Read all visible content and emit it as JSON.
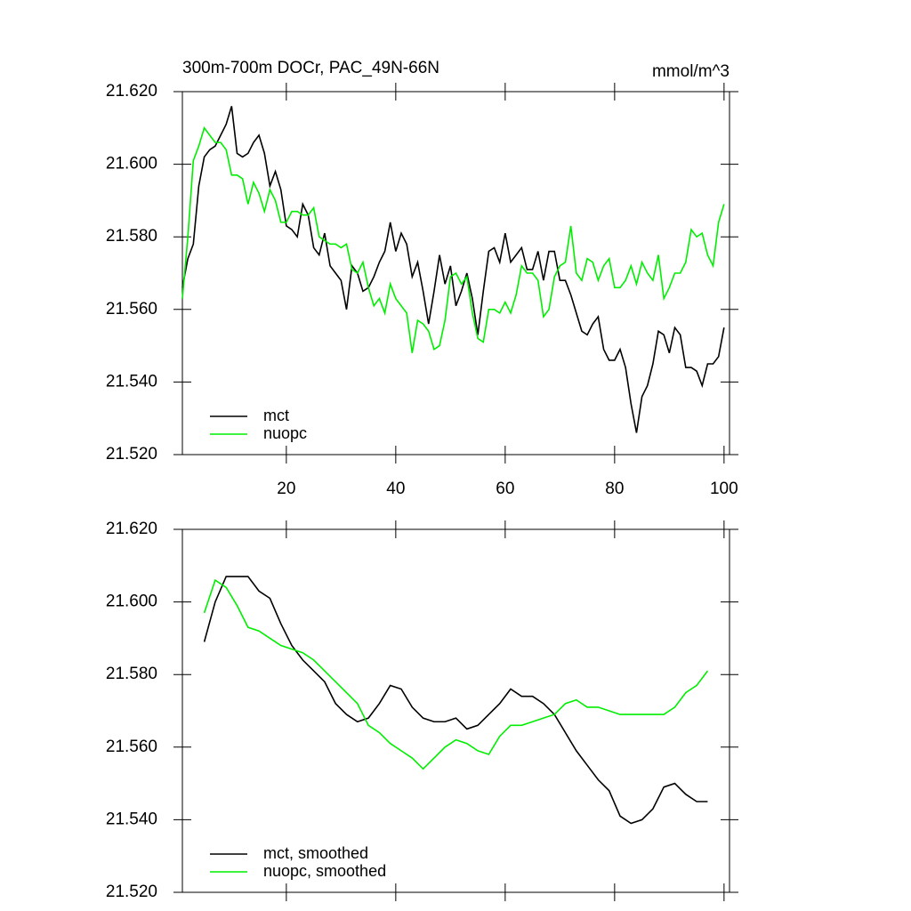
{
  "chart_data": [
    {
      "type": "line",
      "title": "300m-700m DOCr, PAC_49N-66N",
      "right_title": "mmol/m^3",
      "x": [
        1,
        2,
        3,
        4,
        5,
        6,
        7,
        8,
        9,
        10,
        11,
        12,
        13,
        14,
        15,
        16,
        17,
        18,
        19,
        20,
        21,
        22,
        23,
        24,
        25,
        26,
        27,
        28,
        29,
        30,
        31,
        32,
        33,
        34,
        35,
        36,
        37,
        38,
        39,
        40,
        41,
        42,
        43,
        44,
        45,
        46,
        47,
        48,
        49,
        50,
        51,
        52,
        53,
        54,
        55,
        56,
        57,
        58,
        59,
        60,
        61,
        62,
        63,
        64,
        65,
        66,
        67,
        68,
        69,
        70,
        71,
        72,
        73,
        74,
        75,
        76,
        77,
        78,
        79,
        80,
        81,
        82,
        83,
        84,
        85,
        86,
        87,
        88,
        89,
        90,
        91,
        92,
        93,
        94,
        95,
        96,
        97,
        98,
        99,
        100
      ],
      "series": [
        {
          "name": "mct",
          "color": "#000000",
          "values": [
            21.566,
            21.574,
            21.578,
            21.594,
            21.602,
            21.604,
            21.605,
            21.608,
            21.611,
            21.616,
            21.603,
            21.602,
            21.603,
            21.606,
            21.608,
            21.603,
            21.594,
            21.598,
            21.593,
            21.583,
            21.582,
            21.58,
            21.589,
            21.586,
            21.577,
            21.575,
            21.581,
            21.572,
            21.57,
            21.568,
            21.56,
            21.572,
            21.57,
            21.565,
            21.566,
            21.569,
            21.573,
            21.576,
            21.584,
            21.576,
            21.581,
            21.578,
            21.569,
            21.573,
            21.565,
            21.556,
            21.565,
            21.575,
            21.567,
            21.572,
            21.561,
            21.565,
            21.57,
            21.563,
            21.553,
            21.565,
            21.576,
            21.577,
            21.573,
            21.581,
            21.573,
            21.575,
            21.577,
            21.571,
            21.571,
            21.576,
            21.568,
            21.576,
            21.576,
            21.568,
            21.568,
            21.564,
            21.559,
            21.554,
            21.553,
            21.556,
            21.558,
            21.549,
            21.546,
            21.546,
            21.549,
            21.544,
            21.534,
            21.526,
            21.536,
            21.539,
            21.545,
            21.554,
            21.553,
            21.548,
            21.555,
            21.553,
            21.544,
            21.544,
            21.543,
            21.539,
            21.545,
            21.545,
            21.547,
            21.555
          ]
        },
        {
          "name": "nuopc",
          "color": "#00ee00",
          "values": [
            21.563,
            21.58,
            21.601,
            21.605,
            21.61,
            21.608,
            21.606,
            21.606,
            21.604,
            21.597,
            21.597,
            21.596,
            21.589,
            21.595,
            21.592,
            21.587,
            21.593,
            21.59,
            21.584,
            21.584,
            21.587,
            21.587,
            21.586,
            21.586,
            21.588,
            21.58,
            21.579,
            21.578,
            21.578,
            21.577,
            21.578,
            21.571,
            21.57,
            21.573,
            21.566,
            21.561,
            21.563,
            21.559,
            21.567,
            21.563,
            21.561,
            21.559,
            21.548,
            21.557,
            21.556,
            21.554,
            21.549,
            21.55,
            21.557,
            21.569,
            21.57,
            21.567,
            21.569,
            21.559,
            21.552,
            21.551,
            21.56,
            21.56,
            21.559,
            21.562,
            21.559,
            21.564,
            21.572,
            21.57,
            21.57,
            21.568,
            21.558,
            21.56,
            21.569,
            21.572,
            21.573,
            21.583,
            21.57,
            21.568,
            21.574,
            21.573,
            21.568,
            21.572,
            21.574,
            21.566,
            21.566,
            21.568,
            21.572,
            21.567,
            21.573,
            21.57,
            21.568,
            21.575,
            21.563,
            21.566,
            21.57,
            21.57,
            21.573,
            21.582,
            21.58,
            21.581,
            21.575,
            21.572,
            21.584,
            21.589
          ]
        }
      ],
      "xlim": [
        1,
        101
      ],
      "xticks": [
        20,
        40,
        60,
        80,
        100
      ],
      "xtick_labels": true,
      "ylim": [
        21.52,
        21.62
      ],
      "yticks": [
        {
          "value": 21.52,
          "label": "21.520"
        },
        {
          "value": 21.54,
          "label": "21.540"
        },
        {
          "value": 21.56,
          "label": "21.560"
        },
        {
          "value": 21.58,
          "label": "21.580"
        },
        {
          "value": 21.6,
          "label": "21.600"
        },
        {
          "value": 21.62,
          "label": "21.620"
        }
      ],
      "legend": "lower-left"
    },
    {
      "type": "line",
      "x": [
        5,
        7,
        9,
        11,
        13,
        15,
        17,
        19,
        21,
        23,
        25,
        27,
        29,
        31,
        33,
        35,
        37,
        39,
        41,
        43,
        45,
        47,
        49,
        51,
        53,
        55,
        57,
        59,
        61,
        63,
        65,
        67,
        69,
        71,
        73,
        75,
        77,
        79,
        81,
        83,
        85,
        87,
        89,
        91,
        93,
        95,
        97
      ],
      "series": [
        {
          "name": "mct, smoothed",
          "color": "#000000",
          "values": [
            21.589,
            21.6,
            21.607,
            21.607,
            21.607,
            21.603,
            21.601,
            21.594,
            21.588,
            21.584,
            21.581,
            21.578,
            21.572,
            21.569,
            21.567,
            21.568,
            21.572,
            21.577,
            21.576,
            21.571,
            21.568,
            21.567,
            21.567,
            21.568,
            21.565,
            21.566,
            21.569,
            21.572,
            21.576,
            21.574,
            21.574,
            21.572,
            21.569,
            21.564,
            21.559,
            21.555,
            21.551,
            21.548,
            21.541,
            21.539,
            21.54,
            21.543,
            21.549,
            21.55,
            21.547,
            21.545,
            21.545
          ]
        },
        {
          "name": "nuopc, smoothed",
          "color": "#00ee00",
          "values": [
            21.597,
            21.606,
            21.604,
            21.599,
            21.593,
            21.592,
            21.59,
            21.588,
            21.587,
            21.586,
            21.584,
            21.581,
            21.578,
            21.575,
            21.572,
            21.566,
            21.564,
            21.561,
            21.559,
            21.557,
            21.554,
            21.557,
            21.56,
            21.562,
            21.561,
            21.559,
            21.558,
            21.563,
            21.566,
            21.566,
            21.567,
            21.568,
            21.569,
            21.572,
            21.573,
            21.571,
            21.571,
            21.57,
            21.569,
            21.569,
            21.569,
            21.569,
            21.569,
            21.571,
            21.575,
            21.577,
            21.581
          ]
        }
      ],
      "xlim": [
        1,
        101
      ],
      "xticks": [
        20,
        40,
        60,
        80,
        100
      ],
      "xtick_labels": false,
      "ylim": [
        21.52,
        21.62
      ],
      "yticks": [
        {
          "value": 21.52,
          "label": "21.520"
        },
        {
          "value": 21.54,
          "label": "21.540"
        },
        {
          "value": 21.56,
          "label": "21.560"
        },
        {
          "value": 21.58,
          "label": "21.580"
        },
        {
          "value": 21.6,
          "label": "21.600"
        },
        {
          "value": 21.62,
          "label": "21.620"
        }
      ],
      "legend": "lower-left"
    }
  ]
}
